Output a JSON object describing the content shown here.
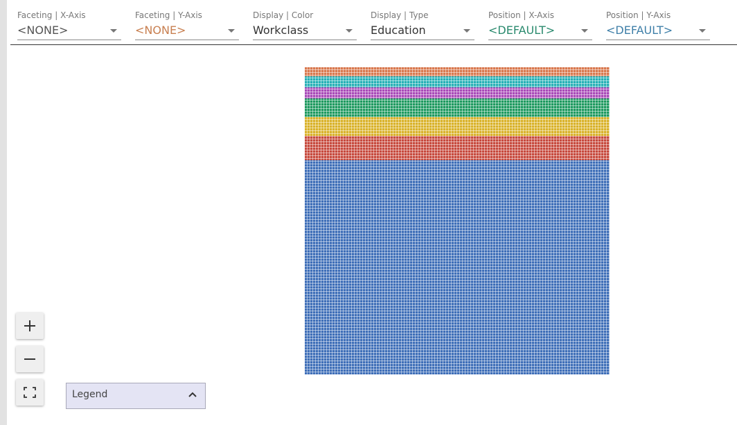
{
  "toolbar": {
    "controls": [
      {
        "label": "Faceting | X-Axis",
        "value": "<NONE>",
        "color": "#555555"
      },
      {
        "label": "Faceting | Y-Axis",
        "value": "<NONE>",
        "color": "#c87f50"
      },
      {
        "label": "Display | Color",
        "value": "Workclass",
        "color": "#333333"
      },
      {
        "label": "Display | Type",
        "value": "Education",
        "color": "#333333"
      },
      {
        "label": "Position | X-Axis",
        "value": "<DEFAULT>",
        "color": "#2a8a6e"
      },
      {
        "label": "Position | Y-Axis",
        "value": "<DEFAULT>",
        "color": "#3f7fa8"
      }
    ]
  },
  "legend": {
    "label": "Legend"
  },
  "zoom": {
    "in_icon": "plus-icon",
    "out_icon": "minus-icon",
    "reset_icon": "fit-screen-icon"
  },
  "plot": {
    "bands": [
      {
        "color": "#d9784e",
        "fraction": 0.03
      },
      {
        "color": "#26b0b6",
        "fraction": 0.035
      },
      {
        "color": "#a94bb8",
        "fraction": 0.035
      },
      {
        "color": "#1f9a60",
        "fraction": 0.06
      },
      {
        "color": "#d9b22a",
        "fraction": 0.06
      },
      {
        "color": "#c74a3e",
        "fraction": 0.08
      },
      {
        "color": "#3f6fb8",
        "fraction": 0.7
      }
    ]
  }
}
